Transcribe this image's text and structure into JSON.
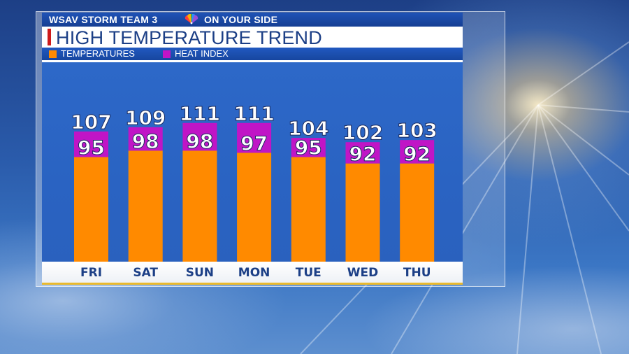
{
  "header": {
    "station_left": "WSAV STORM TEAM 3",
    "station_right": "ON YOUR SIDE",
    "logo_icon": "nbc-peacock-icon"
  },
  "title": "HIGH TEMPERATURE TREND",
  "colors": {
    "temperature": "#ff8a00",
    "heat_index": "#c015c6",
    "title_accent": "#cf1b1b",
    "plot_background": "#2c66c6"
  },
  "chart_data": {
    "type": "bar",
    "stacked": true,
    "title": "HIGH TEMPERATURE TREND",
    "categories": [
      "FRI",
      "SAT",
      "SUN",
      "MON",
      "TUE",
      "WED",
      "THU"
    ],
    "series": [
      {
        "name": "TEMPERATURES",
        "values": [
          95,
          98,
          98,
          97,
          95,
          92,
          92
        ]
      },
      {
        "name": "HEAT INDEX",
        "values": [
          107,
          109,
          111,
          111,
          104,
          102,
          103
        ]
      }
    ],
    "legend": "top-left",
    "grid": false
  }
}
